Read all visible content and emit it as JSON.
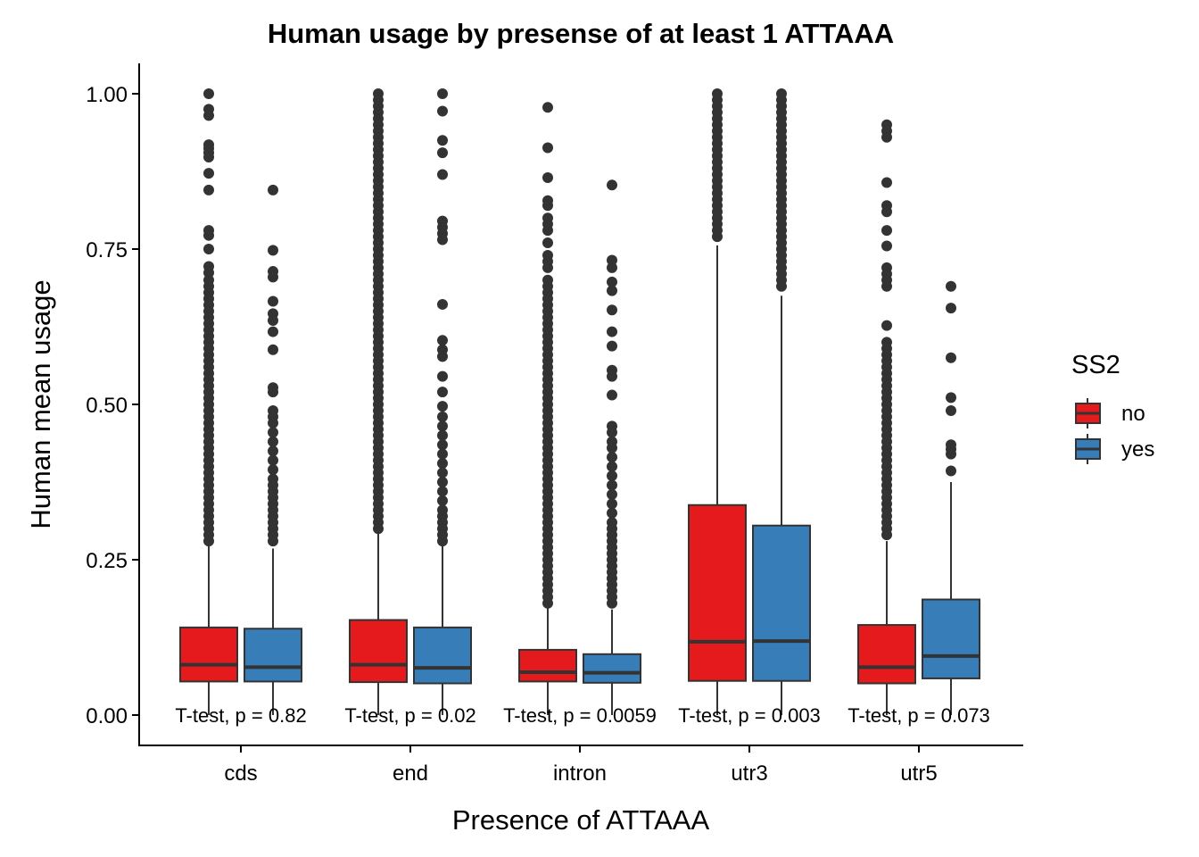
{
  "chart_data": {
    "type": "box",
    "title": "Human usage by presense of at least 1  ATTAAA",
    "xlabel": "Presence of  ATTAAA",
    "ylabel": "Human mean usage",
    "ylim": [
      -0.045,
      1.048
    ],
    "yticks": [
      "0.00",
      "0.25",
      "0.50",
      "0.75",
      "1.00"
    ],
    "ytick_values": [
      0,
      0.25,
      0.5,
      0.75,
      1.0
    ],
    "categories": [
      "cds",
      "end",
      "intron",
      "utr3",
      "utr5"
    ],
    "legend": {
      "title": "SS2",
      "position": "right"
    },
    "colors": {
      "no": "#E41A1C",
      "yes": "#377EB8",
      "outline": "#333333",
      "median": "#333333",
      "outlier": "#333333"
    },
    "series": [
      {
        "name": "no",
        "color": "#E41A1C",
        "boxes": [
          {
            "min": 0.0,
            "q1": 0.054,
            "median": 0.081,
            "q3": 0.141,
            "max": 0.272,
            "outliers": [
              1.0,
              0.975,
              0.965,
              0.918,
              0.912,
              0.905,
              0.898,
              0.872,
              0.845,
              0.78,
              0.772,
              0.75,
              0.722,
              0.712,
              0.7,
              0.69,
              0.68,
              0.67,
              0.66,
              0.65,
              0.64,
              0.63,
              0.62,
              0.61,
              0.6,
              0.59,
              0.58,
              0.57,
              0.56,
              0.55,
              0.54,
              0.53,
              0.52,
              0.51,
              0.5,
              0.49,
              0.48,
              0.47,
              0.46,
              0.45,
              0.44,
              0.43,
              0.42,
              0.41,
              0.4,
              0.39,
              0.38,
              0.37,
              0.36,
              0.35,
              0.34,
              0.33,
              0.32,
              0.31,
              0.3,
              0.29,
              0.28
            ]
          },
          {
            "min": 0.0,
            "q1": 0.053,
            "median": 0.081,
            "q3": 0.153,
            "max": 0.296,
            "outliers": [
              1.0,
              0.99,
              0.98,
              0.97,
              0.96,
              0.95,
              0.94,
              0.93,
              0.92,
              0.91,
              0.9,
              0.89,
              0.88,
              0.87,
              0.86,
              0.85,
              0.84,
              0.83,
              0.82,
              0.81,
              0.8,
              0.79,
              0.78,
              0.77,
              0.76,
              0.75,
              0.74,
              0.73,
              0.72,
              0.71,
              0.7,
              0.69,
              0.68,
              0.67,
              0.66,
              0.65,
              0.64,
              0.63,
              0.62,
              0.61,
              0.6,
              0.59,
              0.58,
              0.57,
              0.56,
              0.55,
              0.54,
              0.53,
              0.52,
              0.51,
              0.5,
              0.49,
              0.48,
              0.47,
              0.46,
              0.45,
              0.44,
              0.43,
              0.42,
              0.41,
              0.4,
              0.39,
              0.38,
              0.37,
              0.36,
              0.35,
              0.34,
              0.33,
              0.32,
              0.31,
              0.3
            ]
          },
          {
            "min": 0.0,
            "q1": 0.054,
            "median": 0.069,
            "q3": 0.105,
            "max": 0.177,
            "outliers": [
              0.978,
              0.913,
              0.865,
              0.828,
              0.82,
              0.8,
              0.79,
              0.78,
              0.76,
              0.74,
              0.73,
              0.72,
              0.7,
              0.69,
              0.68,
              0.67,
              0.66,
              0.65,
              0.64,
              0.63,
              0.62,
              0.61,
              0.6,
              0.59,
              0.58,
              0.57,
              0.56,
              0.55,
              0.54,
              0.53,
              0.52,
              0.51,
              0.5,
              0.49,
              0.48,
              0.47,
              0.46,
              0.45,
              0.44,
              0.43,
              0.42,
              0.41,
              0.4,
              0.39,
              0.38,
              0.37,
              0.36,
              0.35,
              0.34,
              0.33,
              0.32,
              0.31,
              0.3,
              0.29,
              0.28,
              0.27,
              0.26,
              0.25,
              0.24,
              0.23,
              0.22,
              0.21,
              0.2,
              0.19,
              0.18
            ]
          },
          {
            "min": 0.0,
            "q1": 0.055,
            "median": 0.118,
            "q3": 0.338,
            "max": 0.756,
            "outliers": [
              1.0,
              0.99,
              0.98,
              0.97,
              0.96,
              0.95,
              0.94,
              0.93,
              0.92,
              0.91,
              0.9,
              0.89,
              0.88,
              0.87,
              0.86,
              0.85,
              0.84,
              0.83,
              0.82,
              0.81,
              0.8,
              0.79,
              0.78,
              0.77
            ]
          },
          {
            "min": 0.0,
            "q1": 0.051,
            "median": 0.077,
            "q3": 0.145,
            "max": 0.28,
            "outliers": [
              0.95,
              0.94,
              0.93,
              0.857,
              0.82,
              0.81,
              0.78,
              0.755,
              0.72,
              0.71,
              0.7,
              0.69,
              0.627,
              0.6,
              0.59,
              0.58,
              0.57,
              0.56,
              0.55,
              0.54,
              0.53,
              0.52,
              0.51,
              0.5,
              0.49,
              0.48,
              0.47,
              0.46,
              0.45,
              0.44,
              0.43,
              0.42,
              0.41,
              0.4,
              0.39,
              0.38,
              0.37,
              0.36,
              0.35,
              0.34,
              0.33,
              0.32,
              0.31,
              0.3,
              0.29
            ]
          }
        ]
      },
      {
        "name": "yes",
        "color": "#377EB8",
        "boxes": [
          {
            "min": 0.0,
            "q1": 0.054,
            "median": 0.077,
            "q3": 0.139,
            "max": 0.268,
            "outliers": [
              0.845,
              0.748,
              0.714,
              0.705,
              0.666,
              0.646,
              0.635,
              0.617,
              0.588,
              0.527,
              0.52,
              0.49,
              0.48,
              0.47,
              0.455,
              0.44,
              0.425,
              0.41,
              0.395,
              0.38,
              0.37,
              0.36,
              0.35,
              0.34,
              0.33,
              0.32,
              0.31,
              0.3,
              0.29,
              0.28
            ]
          },
          {
            "min": 0.0,
            "q1": 0.051,
            "median": 0.076,
            "q3": 0.141,
            "max": 0.275,
            "outliers": [
              1.0,
              0.972,
              0.925,
              0.905,
              0.87,
              0.795,
              0.785,
              0.775,
              0.765,
              0.661,
              0.603,
              0.588,
              0.577,
              0.545,
              0.52,
              0.497,
              0.48,
              0.465,
              0.45,
              0.435,
              0.42,
              0.405,
              0.39,
              0.375,
              0.36,
              0.345,
              0.33,
              0.32,
              0.31,
              0.3,
              0.29,
              0.28
            ]
          },
          {
            "min": 0.0,
            "q1": 0.052,
            "median": 0.068,
            "q3": 0.098,
            "max": 0.17,
            "outliers": [
              0.853,
              0.732,
              0.72,
              0.697,
              0.683,
              0.652,
              0.617,
              0.594,
              0.555,
              0.545,
              0.515,
              0.465,
              0.455,
              0.44,
              0.43,
              0.415,
              0.4,
              0.385,
              0.37,
              0.355,
              0.34,
              0.325,
              0.31,
              0.3,
              0.29,
              0.28,
              0.27,
              0.26,
              0.25,
              0.24,
              0.23,
              0.22,
              0.21,
              0.2,
              0.19,
              0.18
            ]
          },
          {
            "min": 0.0,
            "q1": 0.055,
            "median": 0.119,
            "q3": 0.305,
            "max": 0.675,
            "outliers": [
              1.0,
              0.99,
              0.98,
              0.97,
              0.96,
              0.95,
              0.94,
              0.93,
              0.92,
              0.91,
              0.9,
              0.89,
              0.88,
              0.87,
              0.86,
              0.85,
              0.84,
              0.83,
              0.82,
              0.81,
              0.8,
              0.79,
              0.78,
              0.77,
              0.76,
              0.75,
              0.74,
              0.73,
              0.72,
              0.71,
              0.7,
              0.69
            ]
          },
          {
            "min": 0.0,
            "q1": 0.059,
            "median": 0.095,
            "q3": 0.186,
            "max": 0.375,
            "outliers": [
              0.69,
              0.655,
              0.575,
              0.511,
              0.49,
              0.435,
              0.428,
              0.42,
              0.393
            ]
          }
        ]
      }
    ],
    "annotations": [
      "T-test, p = 0.82",
      "T-test, p = 0.02",
      "T-test, p = 0.0059",
      "T-test, p = 0.003",
      "T-test, p = 0.073"
    ]
  }
}
